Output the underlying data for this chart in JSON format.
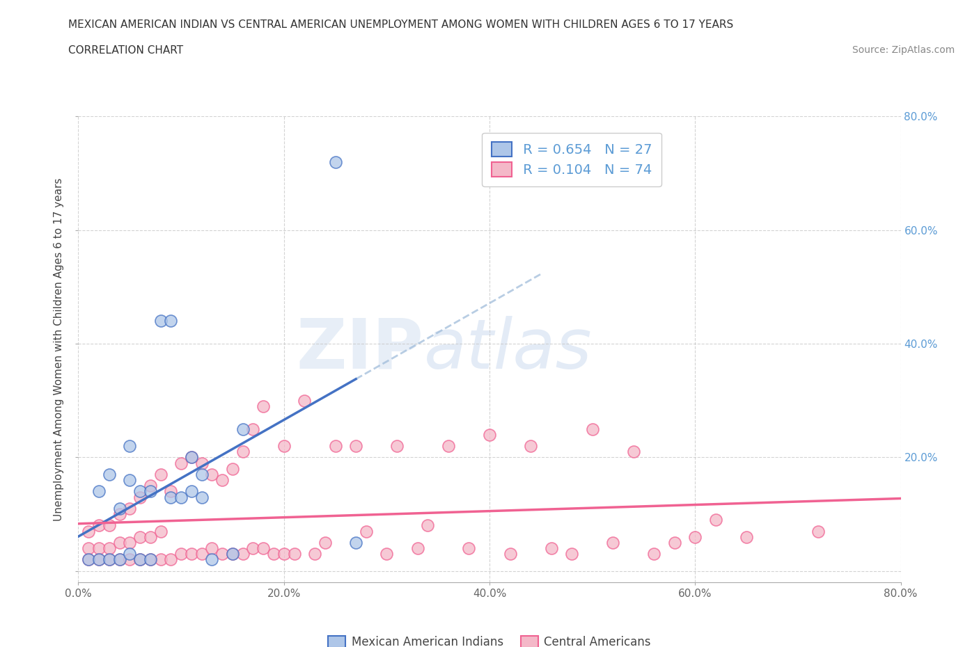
{
  "title": "MEXICAN AMERICAN INDIAN VS CENTRAL AMERICAN UNEMPLOYMENT AMONG WOMEN WITH CHILDREN AGES 6 TO 17 YEARS",
  "subtitle": "CORRELATION CHART",
  "source": "Source: ZipAtlas.com",
  "ylabel": "Unemployment Among Women with Children Ages 6 to 17 years",
  "watermark_zip": "ZIP",
  "watermark_atlas": "atlas",
  "legend_label_1": "Mexican American Indians",
  "legend_label_2": "Central Americans",
  "color_blue": "#aec6e8",
  "color_pink": "#f4b8c8",
  "line_blue": "#4472c4",
  "line_pink": "#f06292",
  "dash_blue": "#9ab8d8",
  "background_color": "#ffffff",
  "grid_color": "#c8c8c8",
  "right_tick_color": "#5b9bd5",
  "blue_scatter_x": [
    0.01,
    0.02,
    0.02,
    0.03,
    0.03,
    0.04,
    0.04,
    0.05,
    0.05,
    0.05,
    0.06,
    0.06,
    0.07,
    0.07,
    0.08,
    0.09,
    0.09,
    0.1,
    0.11,
    0.11,
    0.12,
    0.12,
    0.13,
    0.15,
    0.16,
    0.25,
    0.27
  ],
  "blue_scatter_y": [
    0.02,
    0.02,
    0.14,
    0.02,
    0.17,
    0.02,
    0.11,
    0.03,
    0.16,
    0.22,
    0.02,
    0.14,
    0.02,
    0.14,
    0.44,
    0.44,
    0.13,
    0.13,
    0.14,
    0.2,
    0.13,
    0.17,
    0.02,
    0.03,
    0.25,
    0.72,
    0.05
  ],
  "pink_scatter_x": [
    0.01,
    0.01,
    0.01,
    0.02,
    0.02,
    0.02,
    0.03,
    0.03,
    0.03,
    0.04,
    0.04,
    0.04,
    0.05,
    0.05,
    0.05,
    0.06,
    0.06,
    0.06,
    0.07,
    0.07,
    0.07,
    0.08,
    0.08,
    0.08,
    0.09,
    0.09,
    0.1,
    0.1,
    0.11,
    0.11,
    0.12,
    0.12,
    0.13,
    0.13,
    0.14,
    0.14,
    0.15,
    0.15,
    0.16,
    0.16,
    0.17,
    0.17,
    0.18,
    0.18,
    0.19,
    0.2,
    0.2,
    0.21,
    0.22,
    0.23,
    0.24,
    0.25,
    0.27,
    0.28,
    0.3,
    0.31,
    0.33,
    0.34,
    0.36,
    0.38,
    0.4,
    0.42,
    0.44,
    0.46,
    0.48,
    0.5,
    0.52,
    0.54,
    0.56,
    0.58,
    0.6,
    0.62,
    0.65,
    0.72
  ],
  "pink_scatter_y": [
    0.02,
    0.04,
    0.07,
    0.02,
    0.04,
    0.08,
    0.02,
    0.04,
    0.08,
    0.02,
    0.05,
    0.1,
    0.02,
    0.05,
    0.11,
    0.02,
    0.06,
    0.13,
    0.02,
    0.06,
    0.15,
    0.02,
    0.07,
    0.17,
    0.02,
    0.14,
    0.03,
    0.19,
    0.03,
    0.2,
    0.03,
    0.19,
    0.04,
    0.17,
    0.03,
    0.16,
    0.03,
    0.18,
    0.03,
    0.21,
    0.04,
    0.25,
    0.04,
    0.29,
    0.03,
    0.03,
    0.22,
    0.03,
    0.3,
    0.03,
    0.05,
    0.22,
    0.22,
    0.07,
    0.03,
    0.22,
    0.04,
    0.08,
    0.22,
    0.04,
    0.24,
    0.03,
    0.22,
    0.04,
    0.03,
    0.25,
    0.05,
    0.21,
    0.03,
    0.05,
    0.06,
    0.09,
    0.06,
    0.07
  ],
  "xlim": [
    0.0,
    0.8
  ],
  "ylim": [
    -0.02,
    0.8
  ],
  "xticks": [
    0.0,
    0.2,
    0.4,
    0.6,
    0.8
  ],
  "yticks": [
    0.0,
    0.2,
    0.4,
    0.6,
    0.8
  ],
  "xticklabels": [
    "0.0%",
    "20.0%",
    "40.0%",
    "60.0%",
    "80.0%"
  ],
  "right_yticklabels": [
    "",
    "20.0%",
    "40.0%",
    "60.0%",
    "80.0%"
  ]
}
